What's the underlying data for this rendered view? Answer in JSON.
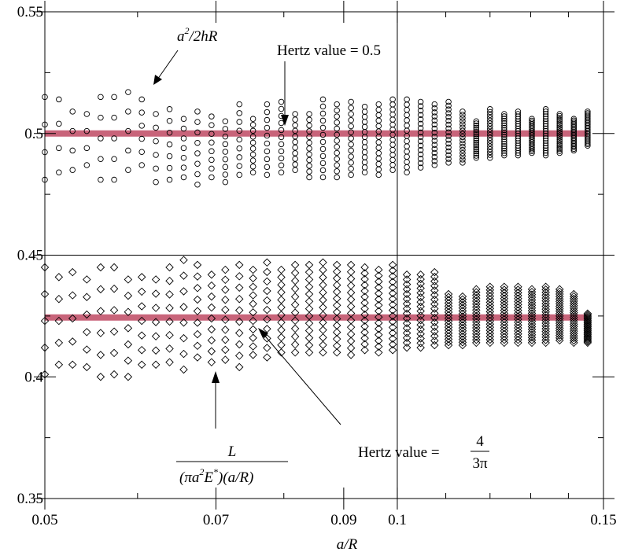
{
  "chart_data": {
    "type": "scatter",
    "xlabel": "a/R",
    "xscale": "log",
    "xlim": [
      0.05,
      0.15
    ],
    "ylim": [
      0.35,
      0.55
    ],
    "xticks": [
      {
        "value": 0.05,
        "label": "0.05"
      },
      {
        "value": 0.07,
        "label": "0.07"
      },
      {
        "value": 0.09,
        "label": "0.09"
      },
      {
        "value": 0.1,
        "label": "0.1"
      },
      {
        "value": 0.15,
        "label": "0.15"
      }
    ],
    "yticks": [
      {
        "value": 0.35,
        "label": "0.35"
      },
      {
        "value": 0.4,
        "label": "0.4"
      },
      {
        "value": 0.45,
        "label": "0.45"
      },
      {
        "value": 0.5,
        "label": "0.5"
      },
      {
        "value": 0.55,
        "label": "0.55"
      }
    ],
    "reference_lines": [
      {
        "y": 0.5,
        "color": "#c8647a"
      },
      {
        "y": 0.4244,
        "color": "#c8647a"
      }
    ],
    "series": [
      {
        "marker": "circle",
        "x": [
          0.05,
          0.0514,
          0.0528,
          0.0543,
          0.0558,
          0.0573,
          0.0589,
          0.0605,
          0.0622,
          0.0639,
          0.0657,
          0.0675,
          0.0694,
          0.0713,
          0.0733,
          0.0753,
          0.0774,
          0.0796,
          0.0818,
          0.0841,
          0.0864,
          0.0888,
          0.0913,
          0.0938,
          0.0964,
          0.0991,
          0.1019,
          0.1047,
          0.1076,
          0.1106,
          0.1137,
          0.1168,
          0.12,
          0.1234,
          0.1268,
          0.1303,
          0.1339,
          0.1376,
          0.1415,
          0.1454
        ],
        "ymin": [
          0.481,
          0.484,
          0.485,
          0.487,
          0.481,
          0.481,
          0.485,
          0.487,
          0.48,
          0.481,
          0.482,
          0.479,
          0.482,
          0.48,
          0.483,
          0.484,
          0.483,
          0.484,
          0.485,
          0.482,
          0.482,
          0.482,
          0.483,
          0.484,
          0.483,
          0.485,
          0.484,
          0.486,
          0.487,
          0.488,
          0.488,
          0.49,
          0.49,
          0.491,
          0.491,
          0.492,
          0.491,
          0.492,
          0.493,
          0.495
        ],
        "ymax": [
          0.515,
          0.514,
          0.509,
          0.508,
          0.515,
          0.515,
          0.517,
          0.514,
          0.508,
          0.51,
          0.506,
          0.509,
          0.507,
          0.505,
          0.512,
          0.506,
          0.512,
          0.513,
          0.508,
          0.508,
          0.514,
          0.512,
          0.513,
          0.511,
          0.512,
          0.514,
          0.514,
          0.513,
          0.512,
          0.513,
          0.509,
          0.505,
          0.51,
          0.508,
          0.509,
          0.506,
          0.51,
          0.508,
          0.506,
          0.509
        ],
        "n": [
          4,
          4,
          4,
          4,
          5,
          5,
          5,
          6,
          6,
          7,
          7,
          8,
          8,
          9,
          9,
          10,
          10,
          11,
          11,
          12,
          12,
          13,
          13,
          14,
          14,
          15,
          15,
          16,
          16,
          17,
          17,
          18,
          18,
          19,
          19,
          20,
          20,
          21,
          21,
          22
        ]
      },
      {
        "marker": "diamond",
        "x": [
          0.05,
          0.0514,
          0.0528,
          0.0543,
          0.0558,
          0.0573,
          0.0589,
          0.0605,
          0.0622,
          0.0639,
          0.0657,
          0.0675,
          0.0694,
          0.0713,
          0.0733,
          0.0753,
          0.0774,
          0.0796,
          0.0818,
          0.0841,
          0.0864,
          0.0888,
          0.0913,
          0.0938,
          0.0964,
          0.0991,
          0.1019,
          0.1047,
          0.1076,
          0.1106,
          0.1137,
          0.1168,
          0.12,
          0.1234,
          0.1268,
          0.1303,
          0.1339,
          0.1376,
          0.1415,
          0.1454
        ],
        "ymin": [
          0.401,
          0.405,
          0.405,
          0.404,
          0.4,
          0.401,
          0.4,
          0.405,
          0.405,
          0.406,
          0.403,
          0.408,
          0.406,
          0.407,
          0.404,
          0.409,
          0.408,
          0.41,
          0.41,
          0.41,
          0.41,
          0.41,
          0.409,
          0.411,
          0.41,
          0.411,
          0.412,
          0.412,
          0.413,
          0.413,
          0.413,
          0.414,
          0.414,
          0.414,
          0.414,
          0.414,
          0.414,
          0.415,
          0.414,
          0.414
        ],
        "ymax": [
          0.445,
          0.441,
          0.443,
          0.44,
          0.445,
          0.445,
          0.44,
          0.441,
          0.44,
          0.445,
          0.448,
          0.446,
          0.442,
          0.444,
          0.446,
          0.444,
          0.447,
          0.444,
          0.446,
          0.446,
          0.447,
          0.446,
          0.446,
          0.445,
          0.444,
          0.446,
          0.442,
          0.442,
          0.443,
          0.434,
          0.433,
          0.436,
          0.437,
          0.437,
          0.437,
          0.436,
          0.437,
          0.436,
          0.434,
          0.426
        ],
        "n": [
          5,
          5,
          5,
          6,
          6,
          6,
          7,
          7,
          7,
          8,
          8,
          9,
          9,
          10,
          10,
          11,
          11,
          12,
          12,
          13,
          13,
          14,
          14,
          15,
          15,
          16,
          16,
          17,
          17,
          18,
          18,
          19,
          19,
          20,
          20,
          21,
          21,
          22,
          22,
          23
        ]
      }
    ],
    "annotations": {
      "formula_top": {
        "base": "a",
        "sup": "2",
        "rest": "/2hR"
      },
      "hertz_top": "Hertz value = 0.5",
      "formula_bottom": {
        "numerator": "L",
        "denom_pre": "(πa",
        "denom_sup1": "2",
        "denom_mid": "E",
        "denom_sup2": "*",
        "denom_post": ")(a/R)"
      },
      "hertz_bottom": {
        "text": "Hertz value =",
        "frac_num": "4",
        "frac_den": "3π"
      }
    }
  }
}
